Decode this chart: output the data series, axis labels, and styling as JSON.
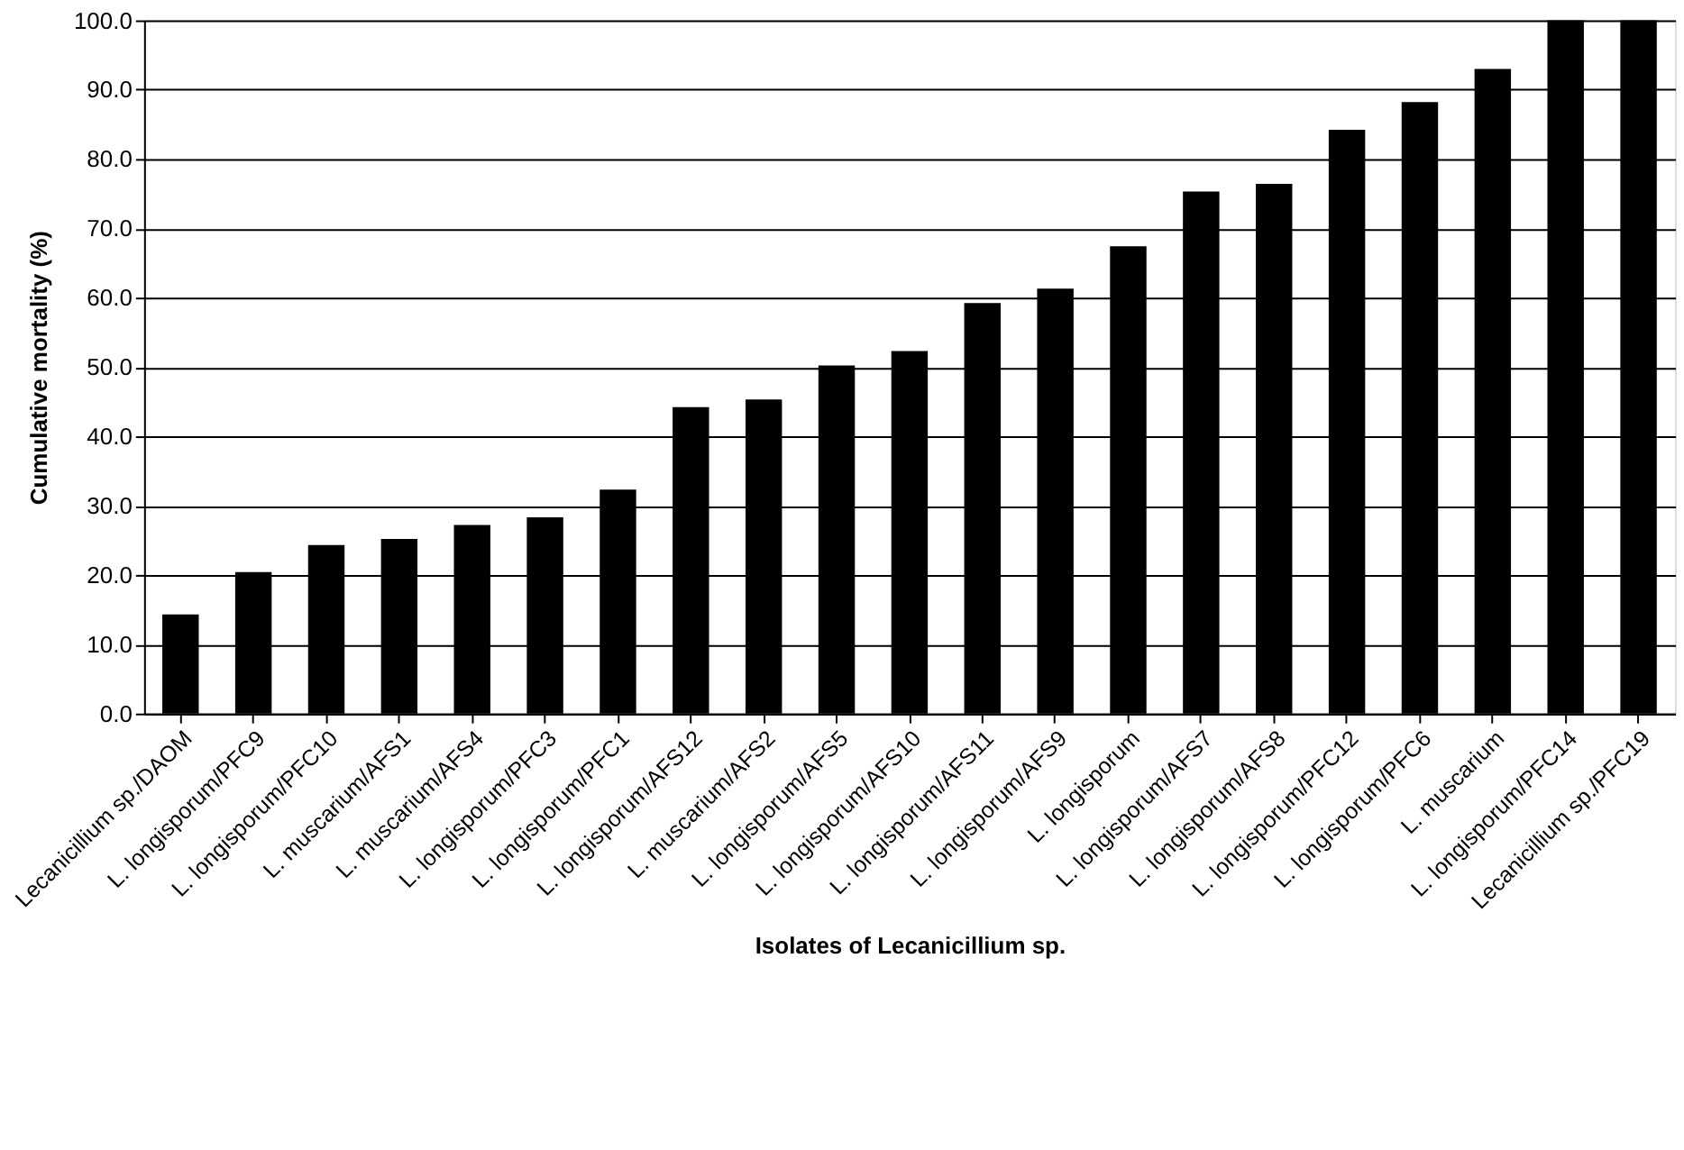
{
  "chart_data": {
    "type": "bar",
    "xlabel": "Isolates of Lecanicillium sp.",
    "ylabel": "Cumulative mortality (%)",
    "categories": [
      "Lecanicillium sp./DAOM",
      "L. longisporum/PFC9",
      "L. longisporum/PFC10",
      "L. muscarium/AFS1",
      "L. muscarium/AFS4",
      "L. longisporum/PFC3",
      "L. longisporum/PFC1",
      "L. longisporum/AFS12",
      "L. muscarium/AFS2",
      "L. longisporum/AFS5",
      "L. longisporum/AFS10",
      "L. longisporum/AFS11",
      "L. longisporum/AFS9",
      "L. longisporum",
      "L. longisporum/AFS7",
      "L. longisporum/AFS8",
      "L. longisporum/PFC12",
      "L. longisporum/PFC6",
      "L. muscarium",
      "L. longisporum/PFC14",
      "Lecanicillium sp./PFC19"
    ],
    "values": [
      14.3,
      20.4,
      24.3,
      25.2,
      27.2,
      28.3,
      32.3,
      44.2,
      45.3,
      50.2,
      52.3,
      59.2,
      61.3,
      67.4,
      75.3,
      76.4,
      84.2,
      88.2,
      93.0,
      100.0,
      100.0
    ],
    "color": "#000000",
    "ylim": [
      0,
      100
    ],
    "yticks": [
      {
        "value": 0,
        "label": "0.0"
      },
      {
        "value": 10,
        "label": "10.0"
      },
      {
        "value": 20,
        "label": "20.0"
      },
      {
        "value": 30,
        "label": "30.0"
      },
      {
        "value": 40,
        "label": "40.0"
      },
      {
        "value": 50,
        "label": "50.0"
      },
      {
        "value": 60,
        "label": "60.0"
      },
      {
        "value": 70,
        "label": "70.0"
      },
      {
        "value": 80,
        "label": "80.0"
      },
      {
        "value": 90,
        "label": "90.0"
      },
      {
        "value": 100,
        "label": "100.0"
      }
    ],
    "grid": "y"
  }
}
